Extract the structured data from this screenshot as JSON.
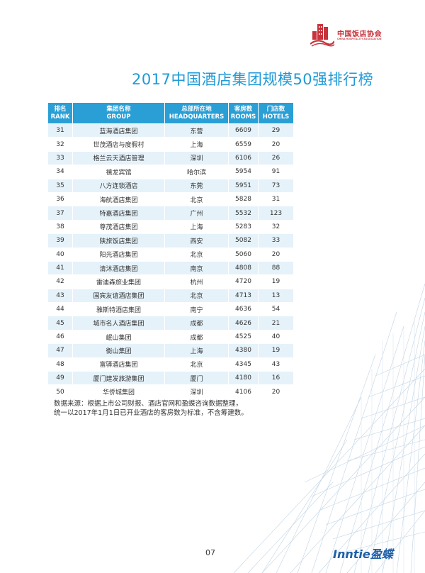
{
  "header": {
    "logo_cn": "中国饭店协会",
    "logo_en": "CHINA HOSPITALITY ASSOCIATION",
    "brand_color": "#c8323a"
  },
  "title": "2017中国酒店集团规模50强排行榜",
  "table": {
    "headers": [
      {
        "cn": "排名",
        "en": "RANK"
      },
      {
        "cn": "集团名称",
        "en": "GROUP"
      },
      {
        "cn": "总部所在地",
        "en": "HEADQUARTERS"
      },
      {
        "cn": "客房数",
        "en": "ROOMS"
      },
      {
        "cn": "门店数",
        "en": "HOTELS"
      }
    ],
    "rows": [
      [
        "31",
        "蓝海酒店集团",
        "东营",
        "6609",
        "29"
      ],
      [
        "32",
        "世茂酒店与度假村",
        "上海",
        "6559",
        "20"
      ],
      [
        "33",
        "格兰云天酒店管理",
        "深圳",
        "6106",
        "26"
      ],
      [
        "34",
        "禧龙宾馆",
        "哈尔滨",
        "5954",
        "91"
      ],
      [
        "35",
        "八方连锁酒店",
        "东莞",
        "5951",
        "73"
      ],
      [
        "36",
        "海航酒店集团",
        "北京",
        "5828",
        "31"
      ],
      [
        "37",
        "特嘉酒店集团",
        "广州",
        "5532",
        "123"
      ],
      [
        "38",
        "尊茂酒店集团",
        "上海",
        "5283",
        "32"
      ],
      [
        "39",
        "陕旅饭店集团",
        "西安",
        "5082",
        "33"
      ],
      [
        "40",
        "阳光酒店集团",
        "北京",
        "5060",
        "20"
      ],
      [
        "41",
        "清沐酒店集团",
        "南京",
        "4808",
        "88"
      ],
      [
        "42",
        "雷迪森旅业集团",
        "杭州",
        "4720",
        "19"
      ],
      [
        "43",
        "国宾友谊酒店集团",
        "北京",
        "4713",
        "13"
      ],
      [
        "44",
        "雅斯特酒店集团",
        "南宁",
        "4636",
        "54"
      ],
      [
        "45",
        "城市名人酒店集团",
        "成都",
        "4626",
        "21"
      ],
      [
        "46",
        "岷山集团",
        "成都",
        "4525",
        "40"
      ],
      [
        "47",
        "衡山集团",
        "上海",
        "4380",
        "19"
      ],
      [
        "48",
        "富驿酒店集团",
        "北京",
        "4345",
        "43"
      ],
      [
        "49",
        "厦门建发旅游集团",
        "厦门",
        "4180",
        "16"
      ],
      [
        "50",
        "华侨城集团",
        "深圳",
        "4106",
        "20"
      ]
    ]
  },
  "note": {
    "line1": "数据来源：根据上市公司财报、酒店官网和盈蝶咨询数据整理，",
    "line2": "统一以2017年1月1日已开业酒店的客房数为标准，不含筹建数。"
  },
  "footer": {
    "page_number": "07",
    "brand": "Inntie盈蝶"
  },
  "colors": {
    "accent": "#1e9ad6",
    "header_bg": "#2a9fd6",
    "row_alt": "#e5f2fa",
    "brand_blue": "#1e5fa8"
  }
}
